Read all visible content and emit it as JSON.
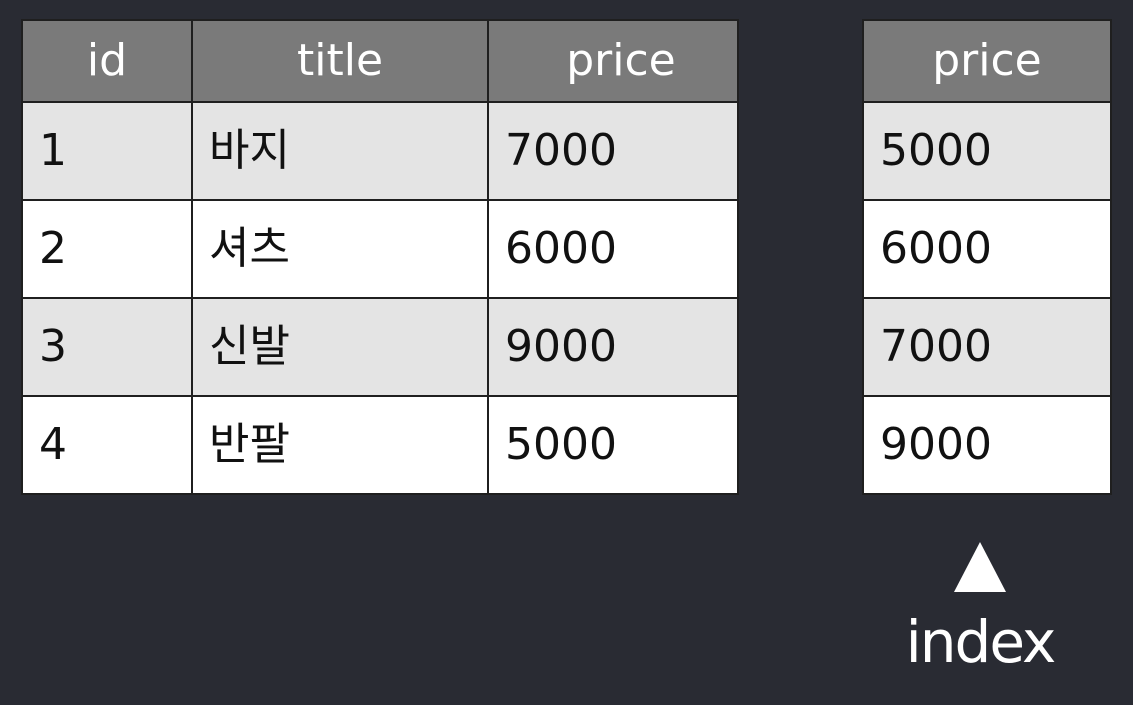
{
  "main_table": {
    "headers": [
      "id",
      "title",
      "price"
    ],
    "rows": [
      {
        "id": "1",
        "title": "바지",
        "price": "7000"
      },
      {
        "id": "2",
        "title": "셔츠",
        "price": "6000"
      },
      {
        "id": "3",
        "title": "신발",
        "price": "9000"
      },
      {
        "id": "4",
        "title": "반팔",
        "price": "5000"
      }
    ]
  },
  "index_table": {
    "header": "price",
    "values": [
      "5000",
      "6000",
      "7000",
      "9000"
    ]
  },
  "index_label": "index"
}
